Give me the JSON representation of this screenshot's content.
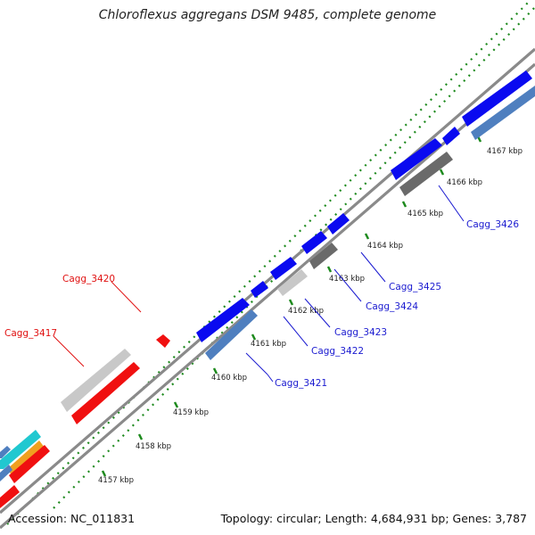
{
  "title": "Chloroflexus aggregans DSM 9485, complete genome",
  "footer": {
    "accession": "Accession: NC_011831",
    "summary": "Topology: circular; Length: 4,684,931 bp; Genes: 3,787"
  },
  "colors": {
    "backbone": "#8a8a8a",
    "tick_dots": "#1e8a1e",
    "blue_gene": "#0a0af0",
    "steel_gene": "#4f7fbf",
    "gray_gene": "#c8c8c8",
    "dark_gray_gene": "#6a6a6a",
    "red_gene": "#f01010",
    "cyan_gene": "#20c8d0",
    "orange_gene": "#f0a020",
    "label_blue": "#1a1ad0",
    "label_red": "#e01010"
  },
  "ticks": [
    {
      "label": "4157 kbp"
    },
    {
      "label": "4158 kbp"
    },
    {
      "label": "4159 kbp"
    },
    {
      "label": "4160 kbp"
    },
    {
      "label": "4161 kbp"
    },
    {
      "label": "4162 kbp"
    },
    {
      "label": "4163 kbp"
    },
    {
      "label": "4164 kbp"
    },
    {
      "label": "4165 kbp"
    },
    {
      "label": "4166 kbp"
    },
    {
      "label": "4167 kbp"
    }
  ],
  "gene_labels": [
    {
      "name": "Cagg_3417"
    },
    {
      "name": "Cagg_3420"
    },
    {
      "name": "Cagg_3421"
    },
    {
      "name": "Cagg_3422"
    },
    {
      "name": "Cagg_3423"
    },
    {
      "name": "Cagg_3424"
    },
    {
      "name": "Cagg_3425"
    },
    {
      "name": "Cagg_3426"
    }
  ]
}
